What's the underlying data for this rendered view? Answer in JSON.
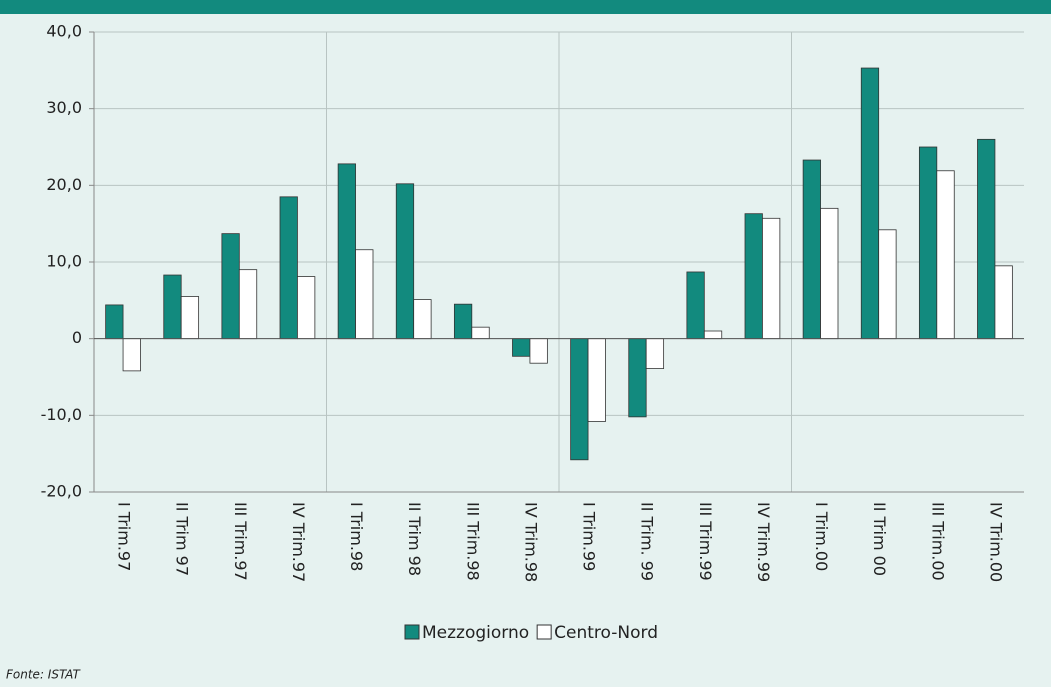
{
  "chart_data": {
    "type": "bar",
    "categories": [
      "I Trim.97",
      "II Trim 97",
      "III Trim.97",
      "IV Trim.97",
      "I Trim.98",
      "II Trim 98",
      "III Trim.98",
      "IV Trim.98",
      "I Trim.99",
      "II Trim. 99",
      "III Trim.99",
      "IV Trim.99",
      "I Trim.00",
      "II Trim 00",
      "III Trim.00",
      "IV Trim.00"
    ],
    "series": [
      {
        "name": "Mezzogiorno",
        "color": "#128a7e",
        "values": [
          4.4,
          8.3,
          13.7,
          18.5,
          22.8,
          20.2,
          4.5,
          -2.3,
          -15.8,
          -10.2,
          8.7,
          16.3,
          23.3,
          35.3,
          25.0,
          26.0
        ]
      },
      {
        "name": "Centro-Nord",
        "color": "#ffffff",
        "values": [
          -4.2,
          5.5,
          9.0,
          8.1,
          11.6,
          5.1,
          1.5,
          -3.2,
          -10.8,
          -3.9,
          1.0,
          15.7,
          17.0,
          14.2,
          21.9,
          9.5
        ]
      }
    ],
    "ylim": [
      -20,
      40
    ],
    "yticks": [
      {
        "value": -20,
        "label": "-20,0"
      },
      {
        "value": -10,
        "label": "-10,0"
      },
      0,
      {
        "value": 10,
        "label": "10,0"
      },
      {
        "value": 20,
        "label": "20,0"
      },
      {
        "value": 30,
        "label": "30,0"
      },
      {
        "value": 40,
        "label": "40,0"
      }
    ],
    "grid": true,
    "source": "Fonte: ISTAT"
  }
}
